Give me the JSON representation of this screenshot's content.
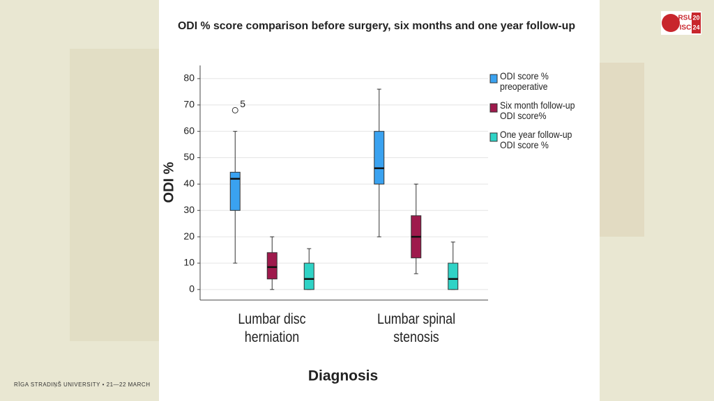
{
  "slide": {
    "logo": {
      "top": "RSU",
      "bottom": "ISC",
      "year_top": "20",
      "year_bottom": "24"
    },
    "footer": "RĪGA STRADIŅŠ UNIVERSITY  •  21—22 MARCH"
  },
  "chart_data": {
    "type": "boxplot",
    "title": "ODI % score comparison before surgery, six months and one year follow-up",
    "x_label": "Diagnosis",
    "y_label": "ODI %",
    "categories": [
      "Lumbar disc herniation",
      "Lumbar spinal stenosis"
    ],
    "ylim": [
      -4,
      85
    ],
    "yticks": [
      0,
      10,
      20,
      30,
      40,
      50,
      60,
      70,
      80
    ],
    "grid": true,
    "series": [
      {
        "name": "ODI score % preoperative",
        "color": "#3aa2f0",
        "values": [
          [
            10,
            30,
            42,
            44.5,
            60
          ],
          [
            20,
            40,
            46,
            60,
            76
          ]
        ],
        "outliers": [
          {
            "category": 0,
            "value": 68,
            "label": "5"
          }
        ]
      },
      {
        "name": "Six month follow-up ODI score%",
        "color": "#9e1a4c",
        "values": [
          [
            0,
            4,
            8.5,
            14,
            20
          ],
          [
            6,
            12,
            20,
            28,
            40
          ]
        ]
      },
      {
        "name": "One year follow-up ODI score %",
        "color": "#2fd3c6",
        "values": [
          [
            0,
            0,
            4,
            10,
            15.5
          ],
          [
            0,
            0,
            4,
            10,
            18
          ]
        ]
      }
    ]
  }
}
